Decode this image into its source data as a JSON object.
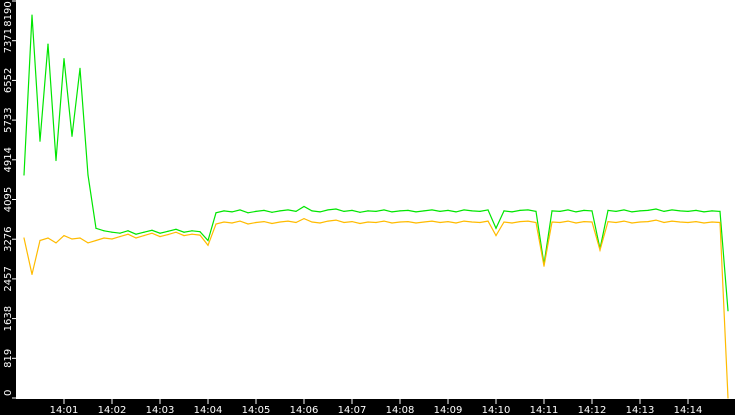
{
  "chart_data": {
    "type": "line",
    "title": "",
    "xlabel": "",
    "ylabel": "",
    "ylim": [
      0,
      8190
    ],
    "xlim": [
      "14:00:00",
      "14:15:00"
    ],
    "yticks": [
      "0",
      "819",
      "1638",
      "2457",
      "3276",
      "4095",
      "4914",
      "5733",
      "6552",
      "7371",
      "8190"
    ],
    "xticks": [
      "14:01",
      "14:02",
      "14:03",
      "14:04",
      "14:05",
      "14:06",
      "14:07",
      "14:08",
      "14:09",
      "14:10",
      "14:11",
      "14:12",
      "14:13",
      "14:14"
    ],
    "grid": false,
    "background": "#ffffff",
    "axis_color": "#000000",
    "x": [
      "14:00:10",
      "14:00:20",
      "14:00:30",
      "14:00:40",
      "14:00:50",
      "14:01:00",
      "14:01:10",
      "14:01:20",
      "14:01:30",
      "14:01:40",
      "14:01:50",
      "14:02:00",
      "14:02:10",
      "14:02:20",
      "14:02:30",
      "14:02:40",
      "14:02:50",
      "14:03:00",
      "14:03:10",
      "14:03:20",
      "14:03:30",
      "14:03:40",
      "14:03:50",
      "14:04:00",
      "14:04:10",
      "14:04:20",
      "14:04:30",
      "14:04:40",
      "14:04:50",
      "14:05:00",
      "14:05:10",
      "14:05:20",
      "14:05:30",
      "14:05:40",
      "14:05:50",
      "14:06:00",
      "14:06:10",
      "14:06:20",
      "14:06:30",
      "14:06:40",
      "14:06:50",
      "14:07:00",
      "14:07:10",
      "14:07:20",
      "14:07:30",
      "14:07:40",
      "14:07:50",
      "14:08:00",
      "14:08:10",
      "14:08:20",
      "14:08:30",
      "14:08:40",
      "14:08:50",
      "14:09:00",
      "14:09:10",
      "14:09:20",
      "14:09:30",
      "14:09:40",
      "14:09:50",
      "14:10:00",
      "14:10:10",
      "14:10:20",
      "14:10:30",
      "14:10:40",
      "14:10:50",
      "14:11:00",
      "14:11:10",
      "14:11:20",
      "14:11:30",
      "14:11:40",
      "14:11:50",
      "14:12:00",
      "14:12:10",
      "14:12:20",
      "14:12:30",
      "14:12:40",
      "14:12:50",
      "14:13:00",
      "14:13:10",
      "14:13:20",
      "14:13:30",
      "14:13:40",
      "14:13:50",
      "14:14:00",
      "14:14:10",
      "14:14:20",
      "14:14:30",
      "14:14:40",
      "14:14:50"
    ],
    "series": [
      {
        "color": "#00e600",
        "values": [
          4600,
          7900,
          5300,
          7300,
          4900,
          7000,
          5400,
          6800,
          4600,
          3500,
          3450,
          3420,
          3400,
          3450,
          3380,
          3420,
          3460,
          3400,
          3440,
          3480,
          3420,
          3450,
          3430,
          3250,
          3820,
          3860,
          3840,
          3880,
          3820,
          3850,
          3870,
          3830,
          3860,
          3880,
          3850,
          3950,
          3860,
          3840,
          3880,
          3900,
          3850,
          3870,
          3830,
          3860,
          3850,
          3880,
          3840,
          3860,
          3870,
          3840,
          3860,
          3880,
          3850,
          3870,
          3840,
          3880,
          3860,
          3850,
          3880,
          3500,
          3860,
          3840,
          3870,
          3880,
          3850,
          2760,
          3860,
          3850,
          3880,
          3840,
          3870,
          3860,
          3080,
          3870,
          3850,
          3880,
          3840,
          3860,
          3870,
          3900,
          3850,
          3880,
          3860,
          3850,
          3870,
          3840,
          3860,
          3850,
          1800
        ]
      },
      {
        "color": "#ffbb00",
        "values": [
          3300,
          2550,
          3250,
          3300,
          3200,
          3350,
          3280,
          3300,
          3200,
          3250,
          3300,
          3280,
          3330,
          3380,
          3300,
          3350,
          3400,
          3330,
          3370,
          3420,
          3350,
          3380,
          3360,
          3150,
          3590,
          3630,
          3610,
          3650,
          3590,
          3620,
          3640,
          3600,
          3630,
          3650,
          3620,
          3700,
          3630,
          3610,
          3650,
          3670,
          3620,
          3640,
          3600,
          3630,
          3620,
          3650,
          3610,
          3630,
          3640,
          3610,
          3630,
          3650,
          3620,
          3640,
          3610,
          3650,
          3630,
          3620,
          3650,
          3350,
          3630,
          3610,
          3640,
          3650,
          3620,
          2720,
          3630,
          3620,
          3650,
          3610,
          3640,
          3630,
          3050,
          3640,
          3620,
          3650,
          3610,
          3630,
          3640,
          3670,
          3620,
          3650,
          3630,
          3620,
          3640,
          3610,
          3630,
          3620,
          0
        ]
      }
    ]
  }
}
